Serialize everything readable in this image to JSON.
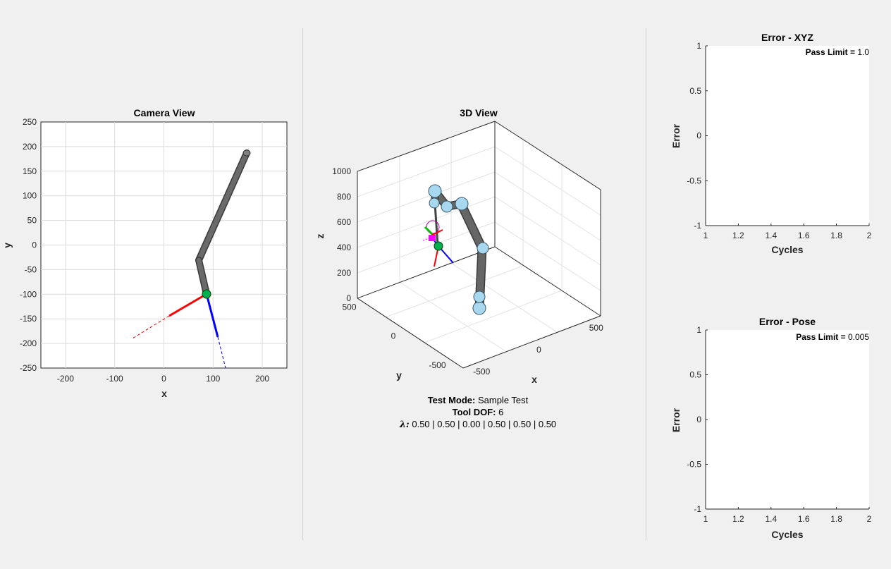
{
  "colors": {
    "figure_bg": "#f0f0f0",
    "axes_bg": "#ffffff",
    "link": "#5f5f5f",
    "joint": "#a8d8f0",
    "tool": "#00b050",
    "x_axis": "#ff0000",
    "y_axis": "#00c000",
    "z_axis": "#0000ff",
    "target": "#ff00ff"
  },
  "camera_view": {
    "title": "Camera View",
    "xlabel": "x",
    "ylabel": "y",
    "xticks": [
      "-200",
      "-100",
      "0",
      "100",
      "200"
    ],
    "yticks": [
      "250",
      "200",
      "150",
      "100",
      "50",
      "0",
      "-50",
      "-100",
      "-150",
      "-200",
      "-250"
    ]
  },
  "view3d": {
    "title": "3D View",
    "xlabel": "x",
    "ylabel": "y",
    "zlabel": "z",
    "zticks": [
      "1000",
      "800",
      "600",
      "400",
      "200",
      "0"
    ],
    "yticks": [
      "500",
      "0",
      "-500"
    ],
    "xticks": [
      "-500",
      "0",
      "500"
    ]
  },
  "info": {
    "mode_label": "Test Mode:",
    "mode_value": " Sample Test",
    "dof_label": "Tool DOF:",
    "dof_value": " 6",
    "lambda_label": "λ:",
    "lambda_value": " 0.50 | 0.50 | 0.00 | 0.50 | 0.50 | 0.50"
  },
  "chart_data": [
    {
      "type": "line",
      "title": "Error - XYZ",
      "xlabel": "Cycles",
      "ylabel": "Error",
      "xlim": [
        1,
        2
      ],
      "ylim": [
        -1,
        1
      ],
      "xticks": [
        "1",
        "1.2",
        "1.4",
        "1.6",
        "1.8",
        "2"
      ],
      "yticks": [
        "1",
        "0.5",
        "0",
        "-0.5",
        "-1"
      ],
      "annotation_label": "Pass Limit =",
      "annotation_value": " 1.0",
      "series": []
    },
    {
      "type": "line",
      "title": "Error - Pose",
      "xlabel": "Cycles",
      "ylabel": "Error",
      "xlim": [
        1,
        2
      ],
      "ylim": [
        -1,
        1
      ],
      "xticks": [
        "1",
        "1.2",
        "1.4",
        "1.6",
        "1.8",
        "2"
      ],
      "yticks": [
        "1",
        "0.5",
        "0",
        "-0.5",
        "-1"
      ],
      "annotation_label": "Pass Limit =",
      "annotation_value": " 0.005",
      "series": []
    }
  ]
}
